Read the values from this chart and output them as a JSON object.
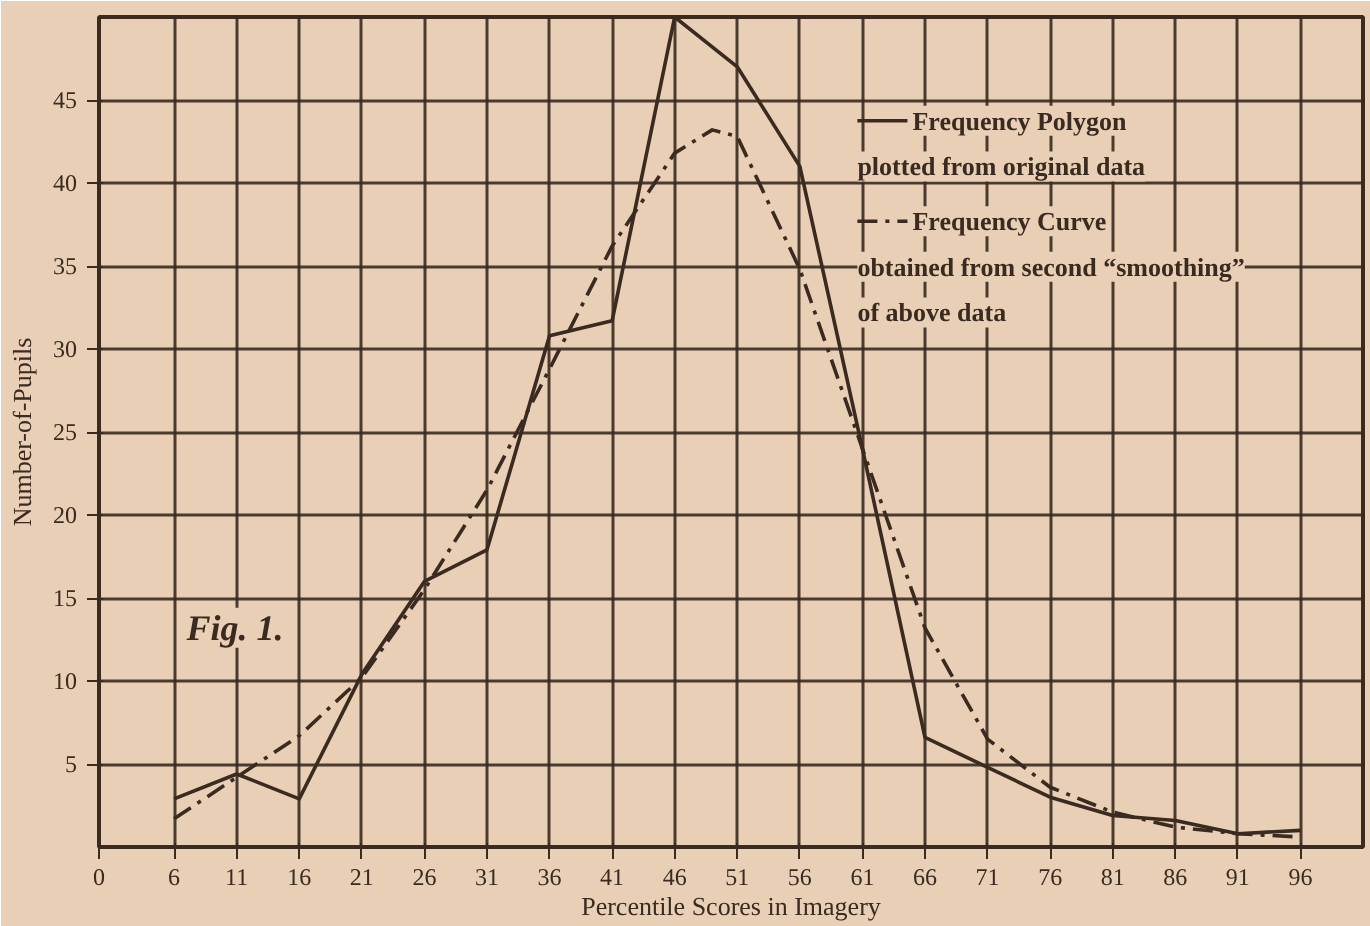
{
  "chart_data": {
    "type": "line",
    "xlabel": "Percentile Scores in Imagery",
    "ylabel": "Number-of-Pupils",
    "annotations": [
      "Fig. 1."
    ],
    "xlim": [
      0,
      101
    ],
    "ylim": [
      0,
      50
    ],
    "xticks": [
      0,
      6,
      11,
      16,
      21,
      26,
      31,
      36,
      41,
      46,
      51,
      56,
      61,
      66,
      71,
      76,
      81,
      86,
      91,
      96
    ],
    "yticks": [
      5,
      10,
      15,
      20,
      25,
      30,
      35,
      40,
      45
    ],
    "grid": true,
    "legend": "top right",
    "marker": "none",
    "series": [
      {
        "name": "Frequency Polygon plotted from original data",
        "color": "#3a2a20",
        "line_style": "solid",
        "x": [
          6,
          11,
          16,
          21,
          26,
          31,
          36,
          41,
          46,
          51,
          56,
          61,
          66,
          71,
          76,
          81,
          86,
          91,
          96
        ],
        "values": [
          2.9,
          4.4,
          2.9,
          10.4,
          16,
          17.9,
          30.8,
          31.7,
          50,
          47,
          41,
          24,
          6.6,
          4.8,
          3,
          1.9,
          1.6,
          0.8,
          1
        ]
      },
      {
        "name": "Frequency Curve obtained from second “smoothing” of above data",
        "color": "#3a2a20",
        "line_style": "dashdot",
        "x": [
          6,
          11,
          16,
          21,
          26,
          31,
          36,
          41,
          46,
          49,
          51,
          56,
          61,
          66,
          71,
          76,
          81,
          86,
          91,
          96
        ],
        "values": [
          1.7,
          4.2,
          6.7,
          10.2,
          15.5,
          21.5,
          28.8,
          36.2,
          41.8,
          43.2,
          42.8,
          34.8,
          24,
          13.2,
          6.5,
          3.6,
          2.1,
          1.2,
          0.8,
          0.6
        ]
      }
    ]
  }
}
